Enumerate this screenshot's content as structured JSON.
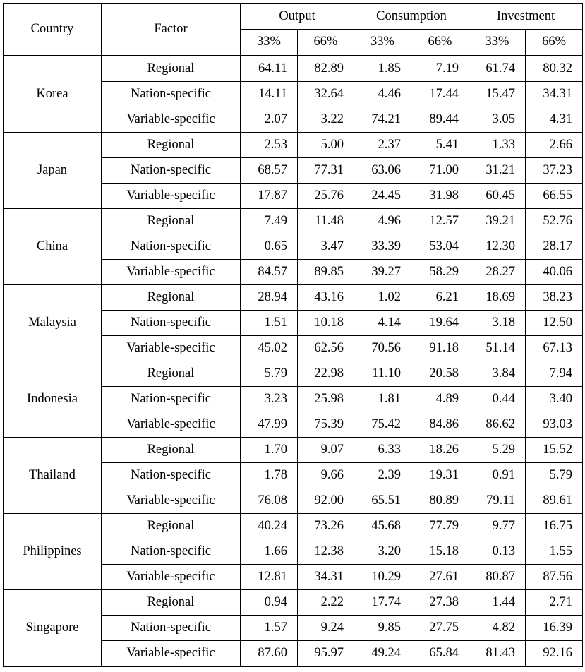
{
  "header": {
    "country": "Country",
    "factor": "Factor",
    "groups": [
      "Output",
      "Consumption",
      "Investment"
    ],
    "subcols": [
      "33%",
      "66%",
      "33%",
      "66%",
      "33%",
      "66%"
    ]
  },
  "rows": [
    {
      "country": "Korea",
      "factors": [
        {
          "name": "Regional",
          "values": [
            "64.11",
            "82.89",
            "1.85",
            "7.19",
            "61.74",
            "80.32"
          ]
        },
        {
          "name": "Nation-specific",
          "values": [
            "14.11",
            "32.64",
            "4.46",
            "17.44",
            "15.47",
            "34.31"
          ]
        },
        {
          "name": "Variable-specific",
          "values": [
            "2.07",
            "3.22",
            "74.21",
            "89.44",
            "3.05",
            "4.31"
          ]
        }
      ]
    },
    {
      "country": "Japan",
      "factors": [
        {
          "name": "Regional",
          "values": [
            "2.53",
            "5.00",
            "2.37",
            "5.41",
            "1.33",
            "2.66"
          ]
        },
        {
          "name": "Nation-specific",
          "values": [
            "68.57",
            "77.31",
            "63.06",
            "71.00",
            "31.21",
            "37.23"
          ]
        },
        {
          "name": "Variable-specific",
          "values": [
            "17.87",
            "25.76",
            "24.45",
            "31.98",
            "60.45",
            "66.55"
          ]
        }
      ]
    },
    {
      "country": "China",
      "factors": [
        {
          "name": "Regional",
          "values": [
            "7.49",
            "11.48",
            "4.96",
            "12.57",
            "39.21",
            "52.76"
          ]
        },
        {
          "name": "Nation-specific",
          "values": [
            "0.65",
            "3.47",
            "33.39",
            "53.04",
            "12.30",
            "28.17"
          ]
        },
        {
          "name": "Variable-specific",
          "values": [
            "84.57",
            "89.85",
            "39.27",
            "58.29",
            "28.27",
            "40.06"
          ]
        }
      ]
    },
    {
      "country": "Malaysia",
      "factors": [
        {
          "name": "Regional",
          "values": [
            "28.94",
            "43.16",
            "1.02",
            "6.21",
            "18.69",
            "38.23"
          ]
        },
        {
          "name": "Nation-specific",
          "values": [
            "1.51",
            "10.18",
            "4.14",
            "19.64",
            "3.18",
            "12.50"
          ]
        },
        {
          "name": "Variable-specific",
          "values": [
            "45.02",
            "62.56",
            "70.56",
            "91.18",
            "51.14",
            "67.13"
          ]
        }
      ]
    },
    {
      "country": "Indonesia",
      "factors": [
        {
          "name": "Regional",
          "values": [
            "5.79",
            "22.98",
            "11.10",
            "20.58",
            "3.84",
            "7.94"
          ]
        },
        {
          "name": "Nation-specific",
          "values": [
            "3.23",
            "25.98",
            "1.81",
            "4.89",
            "0.44",
            "3.40"
          ]
        },
        {
          "name": "Variable-specific",
          "values": [
            "47.99",
            "75.39",
            "75.42",
            "84.86",
            "86.62",
            "93.03"
          ]
        }
      ]
    },
    {
      "country": "Thailand",
      "factors": [
        {
          "name": "Regional",
          "values": [
            "1.70",
            "9.07",
            "6.33",
            "18.26",
            "5.29",
            "15.52"
          ]
        },
        {
          "name": "Nation-specific",
          "values": [
            "1.78",
            "9.66",
            "2.39",
            "19.31",
            "0.91",
            "5.79"
          ]
        },
        {
          "name": "Variable-specific",
          "values": [
            "76.08",
            "92.00",
            "65.51",
            "80.89",
            "79.11",
            "89.61"
          ]
        }
      ]
    },
    {
      "country": "Philippines",
      "factors": [
        {
          "name": "Regional",
          "values": [
            "40.24",
            "73.26",
            "45.68",
            "77.79",
            "9.77",
            "16.75"
          ]
        },
        {
          "name": "Nation-specific",
          "values": [
            "1.66",
            "12.38",
            "3.20",
            "15.18",
            "0.13",
            "1.55"
          ]
        },
        {
          "name": "Variable-specific",
          "values": [
            "12.81",
            "34.31",
            "10.29",
            "27.61",
            "80.87",
            "87.56"
          ]
        }
      ]
    },
    {
      "country": "Singapore",
      "factors": [
        {
          "name": "Regional",
          "values": [
            "0.94",
            "2.22",
            "17.74",
            "27.38",
            "1.44",
            "2.71"
          ]
        },
        {
          "name": "Nation-specific",
          "values": [
            "1.57",
            "9.24",
            "9.85",
            "27.75",
            "4.82",
            "16.39"
          ]
        },
        {
          "name": "Variable-specific",
          "values": [
            "87.60",
            "95.97",
            "49.24",
            "65.84",
            "81.43",
            "92.16"
          ]
        }
      ]
    }
  ]
}
